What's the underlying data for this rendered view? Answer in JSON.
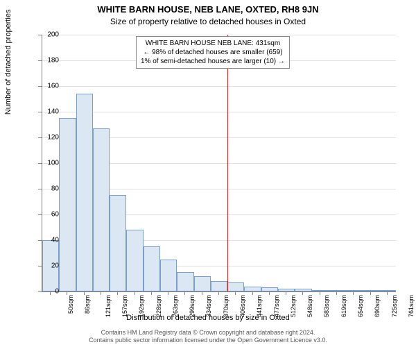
{
  "chart": {
    "type": "histogram",
    "title_main": "WHITE BARN HOUSE, NEB LANE, OXTED, RH8 9JN",
    "title_sub": "Size of property relative to detached houses in Oxted",
    "y_axis_label": "Number of detached properties",
    "x_axis_label": "Distribution of detached houses by size in Oxted",
    "ylim": [
      0,
      200
    ],
    "ytick_step": 20,
    "x_categories": [
      "50sqm",
      "86sqm",
      "121sqm",
      "157sqm",
      "192sqm",
      "228sqm",
      "263sqm",
      "299sqm",
      "334sqm",
      "370sqm",
      "406sqm",
      "441sqm",
      "477sqm",
      "512sqm",
      "548sqm",
      "583sqm",
      "619sqm",
      "654sqm",
      "690sqm",
      "725sqm",
      "761sqm"
    ],
    "values": [
      40,
      135,
      154,
      127,
      75,
      48,
      35,
      25,
      15,
      12,
      8,
      7,
      4,
      3,
      2,
      2,
      1,
      0,
      0,
      1,
      1
    ],
    "bar_fill": "#dce7f4",
    "bar_stroke": "#7a9fc9",
    "grid_color": "#e0e0e0",
    "background": "#ffffff",
    "marker_color": "#d62728",
    "marker_category_index": 11,
    "callout": {
      "line1": "WHITE BARN HOUSE NEB LANE: 431sqm",
      "line2": "← 98% of detached houses are smaller (659)",
      "line3": "1% of semi-detached houses are larger (10) →"
    },
    "footer_line1": "Contains HM Land Registry data © Crown copyright and database right 2024.",
    "footer_line2": "Contains public sector information licensed under the Open Government Licence v3.0.",
    "title_fontsize": 13,
    "sub_fontsize": 12,
    "axis_label_fontsize": 11,
    "tick_fontsize": 10
  }
}
